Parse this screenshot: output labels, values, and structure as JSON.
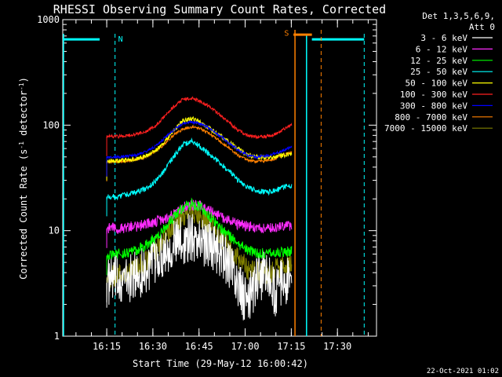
{
  "chart_data": {
    "type": "line",
    "title": "RHESSI Observing Summary Count Rates, Corrected",
    "xlabel": "Start Time (29-May-12 16:00:42)",
    "ylabel_main": "Corrected Count Rate (s",
    "ylabel_sup1": "-1",
    "ylabel_mid": " detector",
    "ylabel_sup2": "-1",
    "ylabel_end": ")",
    "yscale": "log",
    "ylim": [
      1,
      1000
    ],
    "xlim_minutes": [
      0.0,
      102.0
    ],
    "x_ticks": [
      "16:15",
      "16:30",
      "16:45",
      "17:00",
      "17:15",
      "17:30"
    ],
    "y_ticks": [
      "1",
      "10",
      "100",
      "1000"
    ],
    "grid": false,
    "legend_header": [
      "Det 1,3,5,6,9,",
      "Att 0"
    ],
    "legend_position": "outside-right",
    "series": [
      {
        "name": "3 - 6 keV",
        "color": "#ffffff",
        "x": [
          14.3,
          18,
          21,
          24,
          27,
          30,
          33,
          36,
          39,
          42,
          45,
          48,
          51,
          54,
          57,
          60,
          63,
          66,
          69,
          72,
          74.5
        ],
        "values": [
          3.2,
          3.6,
          3.4,
          3.8,
          4.2,
          5.2,
          6.4,
          7.6,
          8.0,
          8.8,
          8.0,
          7.6,
          6.4,
          5.0,
          3.0,
          2.0,
          3.4,
          4.0,
          2.6,
          3.4,
          3.3
        ]
      },
      {
        "name": "6 - 12 keV",
        "color": "#ff2cff",
        "x": [
          14.3,
          18,
          21,
          24,
          27,
          30,
          33,
          36,
          39,
          42,
          45,
          48,
          51,
          54,
          57,
          60,
          63,
          66,
          69,
          72,
          74.5
        ],
        "values": [
          10.5,
          10.5,
          10.8,
          11.0,
          11.5,
          12.0,
          13.0,
          14.5,
          16.5,
          17.5,
          17.0,
          15.5,
          14.0,
          12.5,
          11.5,
          11.0,
          10.8,
          10.6,
          10.8,
          11.0,
          11.0
        ]
      },
      {
        "name": "12 - 25 keV",
        "color": "#00ff00",
        "x": [
          14.3,
          18,
          21,
          24,
          27,
          30,
          33,
          36,
          39,
          42,
          45,
          48,
          51,
          54,
          57,
          60,
          63,
          66,
          69,
          72,
          74.5
        ],
        "values": [
          5.8,
          6.0,
          6.2,
          6.5,
          7.2,
          8.5,
          10.5,
          13.5,
          16.5,
          18.0,
          16.5,
          13.5,
          11.0,
          9.0,
          7.5,
          6.5,
          6.2,
          6.0,
          6.2,
          6.3,
          6.4
        ]
      },
      {
        "name": "25 - 50 keV",
        "color": "#00ffff",
        "x": [
          14.3,
          18,
          21,
          24,
          27,
          30,
          33,
          36,
          39,
          42,
          45,
          48,
          51,
          54,
          57,
          60,
          63,
          66,
          69,
          72,
          74.5
        ],
        "values": [
          21,
          21,
          22,
          23,
          25,
          29,
          37,
          50,
          65,
          70,
          62,
          52,
          44,
          37,
          30,
          26,
          24,
          23,
          24,
          26,
          27
        ]
      },
      {
        "name": "50 - 100 keV",
        "color": "#ffff00",
        "x": [
          14.3,
          18,
          21,
          24,
          27,
          30,
          33,
          36,
          39,
          42,
          45,
          48,
          51,
          54,
          57,
          60,
          63,
          66,
          69,
          72,
          74.5
        ],
        "values": [
          46,
          46,
          47,
          48,
          51,
          57,
          68,
          90,
          110,
          115,
          105,
          92,
          80,
          70,
          60,
          52,
          50,
          49,
          50,
          52,
          53
        ]
      },
      {
        "name": "100 - 300 keV",
        "color": "#ff2020",
        "x": [
          14.3,
          18,
          21,
          24,
          27,
          30,
          33,
          36,
          39,
          42,
          45,
          48,
          51,
          54,
          57,
          60,
          63,
          66,
          69,
          72,
          74.5
        ],
        "values": [
          78,
          78,
          80,
          82,
          87,
          98,
          120,
          150,
          175,
          180,
          168,
          148,
          126,
          106,
          90,
          80,
          77,
          78,
          82,
          92,
          102
        ]
      },
      {
        "name": "300 - 800 keV",
        "color": "#0000ff",
        "x": [
          14.3,
          18,
          21,
          24,
          27,
          30,
          33,
          36,
          39,
          42,
          45,
          48,
          51,
          54,
          57,
          60,
          63,
          66,
          69,
          72,
          74.5
        ],
        "values": [
          50,
          50,
          51,
          52,
          56,
          63,
          75,
          90,
          103,
          108,
          103,
          92,
          80,
          68,
          58,
          52,
          50,
          51,
          54,
          58,
          62
        ]
      },
      {
        "name": "800 - 7000 keV",
        "color": "#ff8000",
        "x": [
          14.3,
          18,
          21,
          24,
          27,
          30,
          33,
          36,
          39,
          42,
          45,
          48,
          51,
          54,
          57,
          60,
          63,
          66,
          69,
          72,
          74.5
        ],
        "values": [
          45,
          45,
          46,
          47,
          50,
          56,
          66,
          80,
          92,
          96,
          92,
          82,
          71,
          61,
          52,
          47,
          45,
          46,
          48,
          52,
          56
        ]
      },
      {
        "name": "7000 - 15000 keV",
        "color": "#808000",
        "x": [
          14.3,
          18,
          21,
          24,
          27,
          30,
          33,
          36,
          39,
          42,
          45,
          48,
          51,
          54,
          57,
          60,
          63,
          66,
          69,
          72,
          74.5
        ],
        "values": [
          3.6,
          3.8,
          4.0,
          4.4,
          5.2,
          6.5,
          8.5,
          11.5,
          14.0,
          15.0,
          14.0,
          11.5,
          9.0,
          7.0,
          5.5,
          4.4,
          4.0,
          4.0,
          4.2,
          4.6,
          5.0
        ]
      }
    ],
    "annotations": [
      {
        "text": "N",
        "color": "#00ffff"
      },
      {
        "text": "S",
        "color": "#ff8000"
      }
    ],
    "cyan_bars": [
      {
        "x": [
          0.0,
          12.0
        ],
        "y": 650
      },
      {
        "x": [
          81.0,
          98.0
        ],
        "y": 650
      }
    ],
    "cyan_solid_lines_x": [
      0.0,
      79.0
    ],
    "cyan_dashed_lines_x": [
      17.0,
      98.0
    ],
    "orange_bar": {
      "x": [
        75.0,
        81.0
      ],
      "y": 720
    },
    "orange_solid_line_x": 75.5,
    "orange_dashed_line_x": 84.0,
    "footer_date": "22-Oct-2021 01:02"
  }
}
